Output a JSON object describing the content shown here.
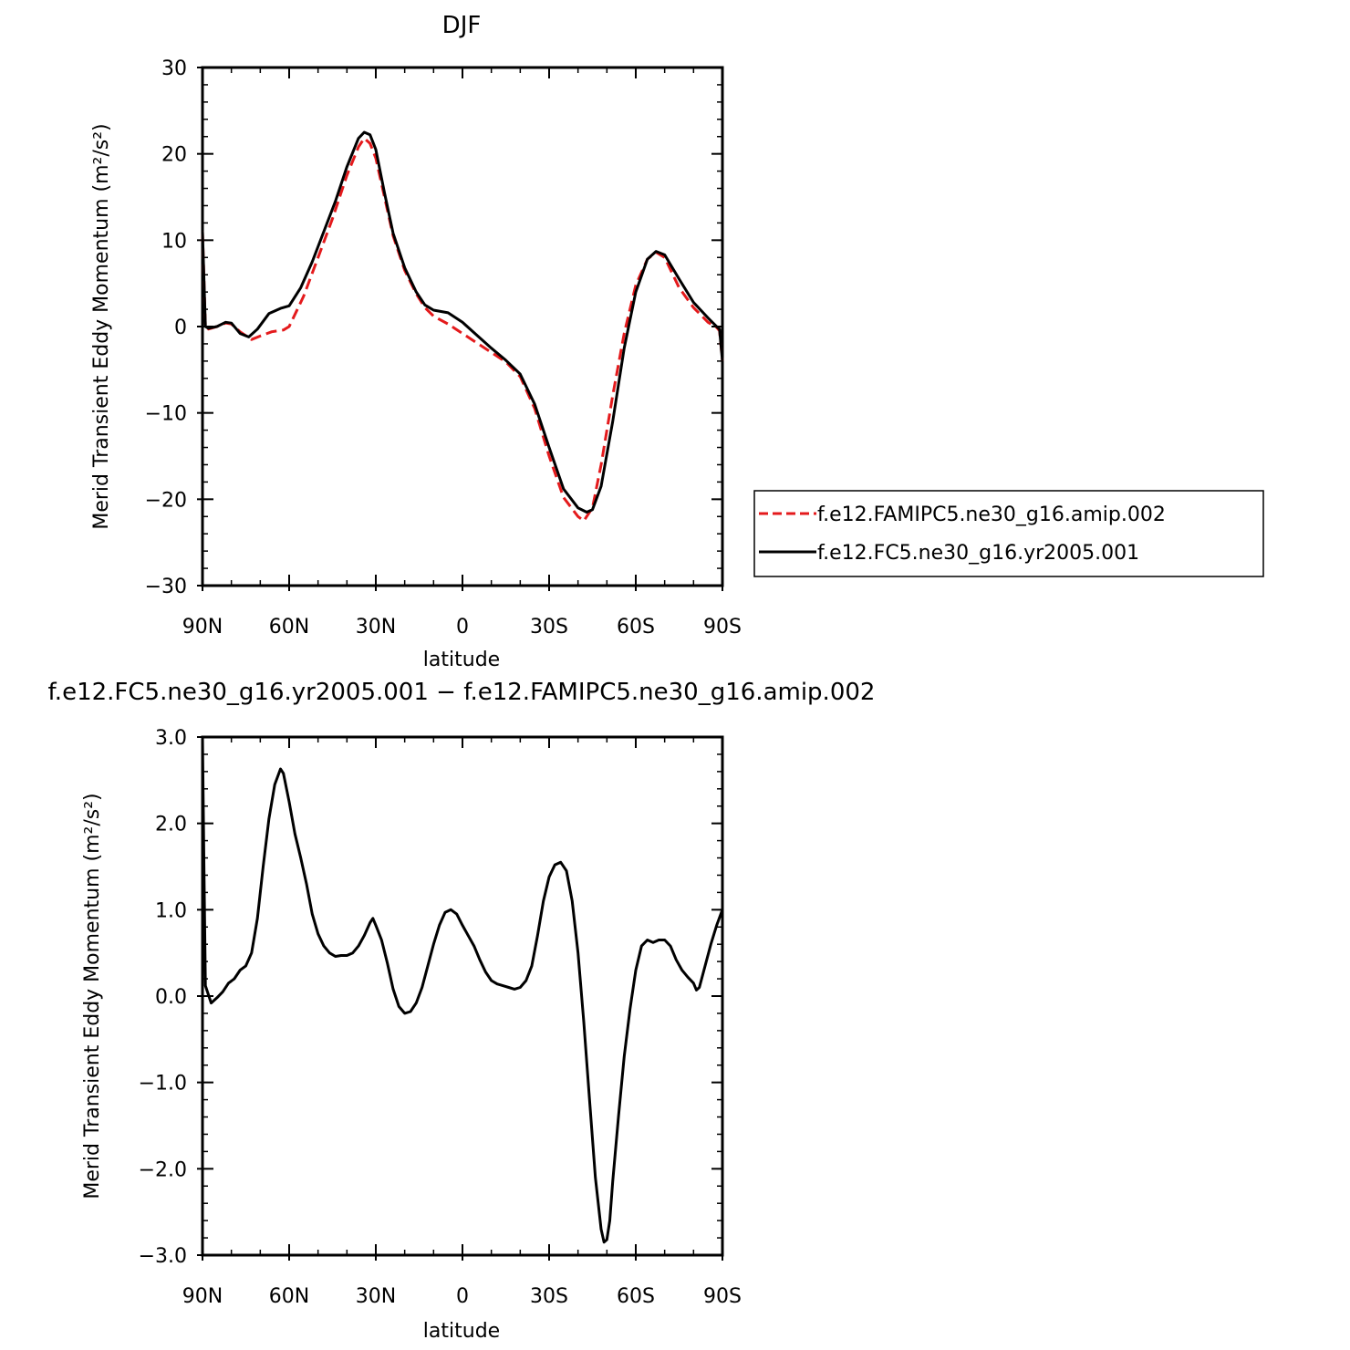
{
  "chart_data": [
    {
      "type": "line",
      "title": "DJF",
      "xlabel": "latitude",
      "ylabel": "Merid Transient Eddy Momentum (m²/s²)",
      "xlim": [
        90,
        -90
      ],
      "ylim": [
        -30,
        30
      ],
      "x_tick_values": [
        90,
        60,
        30,
        0,
        -30,
        -60,
        -90
      ],
      "x_tick_labels": [
        "90N",
        "60N",
        "30N",
        "0",
        "30S",
        "60S",
        "90S"
      ],
      "y_tick_values": [
        -30,
        -20,
        -10,
        0,
        10,
        20,
        30
      ],
      "y_tick_labels": [
        "−30",
        "−20",
        "−10",
        "0",
        "10",
        "20",
        "30"
      ],
      "legend_position": "right",
      "series": [
        {
          "name": "f.e12.FAMIPC5.ne30_g16.amip.002",
          "color": "#e41a1c",
          "dash": "dashed",
          "points": [
            [
              90,
              11
            ],
            [
              89,
              0
            ],
            [
              88,
              -0.3
            ],
            [
              85,
              0
            ],
            [
              82,
              0.4
            ],
            [
              80,
              0.3
            ],
            [
              77,
              -0.6
            ],
            [
              73,
              -1.5
            ],
            [
              70,
              -1.1
            ],
            [
              66,
              -0.6
            ],
            [
              62,
              -0.4
            ],
            [
              60,
              0
            ],
            [
              55,
              3.5
            ],
            [
              50,
              8
            ],
            [
              45,
              12.5
            ],
            [
              40,
              17.5
            ],
            [
              36,
              20.8
            ],
            [
              34,
              21.8
            ],
            [
              32,
              21.2
            ],
            [
              30,
              19.5
            ],
            [
              27,
              15
            ],
            [
              24,
              10.5
            ],
            [
              20,
              6.5
            ],
            [
              16,
              3.8
            ],
            [
              13,
              2.2
            ],
            [
              10,
              1.2
            ],
            [
              5,
              0.3
            ],
            [
              0,
              -0.8
            ],
            [
              -5,
              -1.9
            ],
            [
              -10,
              -3
            ],
            [
              -15,
              -4.1
            ],
            [
              -20,
              -5.8
            ],
            [
              -25,
              -9.5
            ],
            [
              -30,
              -15
            ],
            [
              -35,
              -19.8
            ],
            [
              -40,
              -22
            ],
            [
              -42,
              -22.5
            ],
            [
              -45,
              -21
            ],
            [
              -48,
              -16
            ],
            [
              -52,
              -8
            ],
            [
              -56,
              -0.8
            ],
            [
              -60,
              4.8
            ],
            [
              -64,
              7.8
            ],
            [
              -67,
              8.6
            ],
            [
              -70,
              8
            ],
            [
              -75,
              4.5
            ],
            [
              -80,
              2.2
            ],
            [
              -85,
              0.5
            ],
            [
              -88,
              -0.1
            ],
            [
              -89,
              -0.5
            ],
            [
              -90,
              -4
            ]
          ]
        },
        {
          "name": "f.e12.FC5.ne30_g16.yr2005.001",
          "color": "#000000",
          "dash": "solid",
          "points": [
            [
              90,
              11
            ],
            [
              89,
              0
            ],
            [
              88,
              -0.2
            ],
            [
              85,
              0
            ],
            [
              82,
              0.5
            ],
            [
              80,
              0.4
            ],
            [
              77,
              -0.8
            ],
            [
              74,
              -1.2
            ],
            [
              71,
              -0.3
            ],
            [
              67,
              1.5
            ],
            [
              63,
              2.1
            ],
            [
              60,
              2.4
            ],
            [
              56,
              4.5
            ],
            [
              52,
              7.5
            ],
            [
              48,
              11
            ],
            [
              44,
              14.5
            ],
            [
              40,
              18.5
            ],
            [
              36,
              21.8
            ],
            [
              34,
              22.5
            ],
            [
              32,
              22.2
            ],
            [
              30,
              20.5
            ],
            [
              27,
              15.5
            ],
            [
              24,
              10.8
            ],
            [
              20,
              6.8
            ],
            [
              16,
              4
            ],
            [
              13,
              2.5
            ],
            [
              10,
              1.9
            ],
            [
              5,
              1.6
            ],
            [
              0,
              0.5
            ],
            [
              -5,
              -1
            ],
            [
              -10,
              -2.5
            ],
            [
              -15,
              -3.9
            ],
            [
              -20,
              -5.5
            ],
            [
              -25,
              -9
            ],
            [
              -30,
              -14
            ],
            [
              -35,
              -18.8
            ],
            [
              -40,
              -21
            ],
            [
              -43,
              -21.5
            ],
            [
              -45,
              -21.2
            ],
            [
              -48,
              -18.5
            ],
            [
              -52,
              -11
            ],
            [
              -56,
              -2.5
            ],
            [
              -60,
              4
            ],
            [
              -64,
              7.8
            ],
            [
              -67,
              8.7
            ],
            [
              -70,
              8.3
            ],
            [
              -75,
              5.5
            ],
            [
              -80,
              2.8
            ],
            [
              -85,
              1
            ],
            [
              -88,
              0
            ],
            [
              -89,
              -0.3
            ],
            [
              -90,
              -4
            ]
          ]
        }
      ]
    },
    {
      "type": "line",
      "title": "f.e12.FC5.ne30_g16.yr2005.001 − f.e12.FAMIPC5.ne30_g16.amip.002",
      "xlabel": "latitude",
      "ylabel": "Merid Transient Eddy Momentum (m²/s²)",
      "xlim": [
        90,
        -90
      ],
      "ylim": [
        -3,
        3
      ],
      "x_tick_values": [
        90,
        60,
        30,
        0,
        -30,
        -60,
        -90
      ],
      "x_tick_labels": [
        "90N",
        "60N",
        "30N",
        "0",
        "30S",
        "60S",
        "90S"
      ],
      "y_tick_values": [
        -3,
        -2,
        -1,
        0,
        1,
        2,
        3
      ],
      "y_tick_labels": [
        "−3.0",
        "−2.0",
        "−1.0",
        "0.0",
        "1.0",
        "2.0",
        "3.0"
      ],
      "series": [
        {
          "color": "#000000",
          "dash": "solid",
          "points": [
            [
              90,
              3
            ],
            [
              89.5,
              1.5
            ],
            [
              89,
              0.12
            ],
            [
              87,
              -0.08
            ],
            [
              85,
              -0.02
            ],
            [
              83,
              0.05
            ],
            [
              81,
              0.15
            ],
            [
              79,
              0.2
            ],
            [
              77,
              0.3
            ],
            [
              75,
              0.35
            ],
            [
              73,
              0.5
            ],
            [
              71,
              0.9
            ],
            [
              69,
              1.5
            ],
            [
              67,
              2.05
            ],
            [
              65,
              2.45
            ],
            [
              63,
              2.63
            ],
            [
              62,
              2.58
            ],
            [
              60,
              2.25
            ],
            [
              58,
              1.88
            ],
            [
              56,
              1.6
            ],
            [
              54,
              1.3
            ],
            [
              52,
              0.95
            ],
            [
              50,
              0.72
            ],
            [
              48,
              0.58
            ],
            [
              46,
              0.5
            ],
            [
              44,
              0.46
            ],
            [
              42,
              0.47
            ],
            [
              40,
              0.47
            ],
            [
              38,
              0.5
            ],
            [
              36,
              0.58
            ],
            [
              34,
              0.7
            ],
            [
              32,
              0.85
            ],
            [
              31,
              0.9
            ],
            [
              30,
              0.82
            ],
            [
              28,
              0.65
            ],
            [
              26,
              0.38
            ],
            [
              24,
              0.08
            ],
            [
              22,
              -0.12
            ],
            [
              20,
              -0.2
            ],
            [
              18,
              -0.18
            ],
            [
              16,
              -0.08
            ],
            [
              14,
              0.1
            ],
            [
              12,
              0.35
            ],
            [
              10,
              0.6
            ],
            [
              8,
              0.82
            ],
            [
              6,
              0.97
            ],
            [
              4,
              1.0
            ],
            [
              2,
              0.95
            ],
            [
              0,
              0.82
            ],
            [
              -2,
              0.7
            ],
            [
              -4,
              0.58
            ],
            [
              -6,
              0.42
            ],
            [
              -8,
              0.28
            ],
            [
              -10,
              0.18
            ],
            [
              -12,
              0.14
            ],
            [
              -14,
              0.12
            ],
            [
              -16,
              0.1
            ],
            [
              -18,
              0.08
            ],
            [
              -20,
              0.1
            ],
            [
              -22,
              0.18
            ],
            [
              -24,
              0.35
            ],
            [
              -26,
              0.7
            ],
            [
              -28,
              1.1
            ],
            [
              -30,
              1.38
            ],
            [
              -32,
              1.52
            ],
            [
              -34,
              1.55
            ],
            [
              -36,
              1.45
            ],
            [
              -38,
              1.1
            ],
            [
              -40,
              0.5
            ],
            [
              -42,
              -0.3
            ],
            [
              -44,
              -1.2
            ],
            [
              -46,
              -2.1
            ],
            [
              -48,
              -2.7
            ],
            [
              -49,
              -2.85
            ],
            [
              -50,
              -2.82
            ],
            [
              -51,
              -2.6
            ],
            [
              -52,
              -2.15
            ],
            [
              -54,
              -1.4
            ],
            [
              -56,
              -0.7
            ],
            [
              -58,
              -0.15
            ],
            [
              -60,
              0.3
            ],
            [
              -62,
              0.58
            ],
            [
              -64,
              0.65
            ],
            [
              -66,
              0.62
            ],
            [
              -68,
              0.65
            ],
            [
              -70,
              0.65
            ],
            [
              -72,
              0.58
            ],
            [
              -74,
              0.42
            ],
            [
              -76,
              0.3
            ],
            [
              -78,
              0.22
            ],
            [
              -80,
              0.15
            ],
            [
              -81,
              0.07
            ],
            [
              -82,
              0.1
            ],
            [
              -84,
              0.35
            ],
            [
              -86,
              0.6
            ],
            [
              -88,
              0.82
            ],
            [
              -90,
              1.0
            ]
          ]
        }
      ]
    }
  ]
}
